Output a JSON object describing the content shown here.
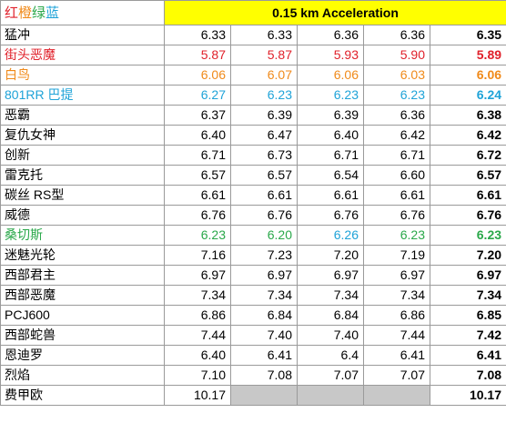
{
  "header": {
    "legend": [
      {
        "text": "红",
        "color": "#e0202a"
      },
      {
        "text": "橙",
        "color": "#f08a1a"
      },
      {
        "text": "绿",
        "color": "#2aa84a"
      },
      {
        "text": "蓝",
        "color": "#1fa3d8"
      }
    ],
    "title": "0.15 km Acceleration",
    "title_bg": "#ffff00"
  },
  "rows": [
    {
      "name": "猛冲",
      "color": "#000000",
      "runs": [
        "6.33",
        "6.33",
        "6.36",
        "6.36"
      ],
      "best": "6.35"
    },
    {
      "name": "街头恶魔",
      "color": "#e0202a",
      "runs": [
        "5.87",
        "5.87",
        "5.93",
        "5.90"
      ],
      "best": "5.89"
    },
    {
      "name": "白鸟",
      "color": "#f08a1a",
      "runs": [
        "6.06",
        "6.07",
        "6.06",
        "6.03"
      ],
      "best": "6.06"
    },
    {
      "name": "801RR 巴提",
      "color": "#1fa3d8",
      "runs": [
        "6.27",
        "6.23",
        "6.23",
        "6.23"
      ],
      "best": "6.24"
    },
    {
      "name": "恶霸",
      "color": "#000000",
      "runs": [
        "6.37",
        "6.39",
        "6.39",
        "6.36"
      ],
      "best": "6.38"
    },
    {
      "name": "复仇女神",
      "color": "#000000",
      "runs": [
        "6.40",
        "6.47",
        "6.40",
        "6.42"
      ],
      "best": "6.42"
    },
    {
      "name": "创新",
      "color": "#000000",
      "runs": [
        "6.71",
        "6.73",
        "6.71",
        "6.71"
      ],
      "best": "6.72"
    },
    {
      "name": "雷克托",
      "color": "#000000",
      "runs": [
        "6.57",
        "6.57",
        "6.54",
        "6.60"
      ],
      "best": "6.57"
    },
    {
      "name": "碳丝 RS型",
      "color": "#000000",
      "runs": [
        "6.61",
        "6.61",
        "6.61",
        "6.61"
      ],
      "best": "6.61"
    },
    {
      "name": "威德",
      "color": "#000000",
      "runs": [
        "6.76",
        "6.76",
        "6.76",
        "6.76"
      ],
      "best": "6.76"
    },
    {
      "name": "桑切斯",
      "color": "#2aa84a",
      "runs": [
        "6.23",
        "6.20",
        "6.26",
        "6.23"
      ],
      "best": "6.23",
      "run_colors": [
        "#2aa84a",
        "#2aa84a",
        "#1fa3d8",
        "#2aa84a"
      ]
    },
    {
      "name": "迷魅光轮",
      "color": "#000000",
      "runs": [
        "7.16",
        "7.23",
        "7.20",
        "7.19"
      ],
      "best": "7.20"
    },
    {
      "name": "西部君主",
      "color": "#000000",
      "runs": [
        "6.97",
        "6.97",
        "6.97",
        "6.97"
      ],
      "best": "6.97"
    },
    {
      "name": "西部恶魔",
      "color": "#000000",
      "runs": [
        "7.34",
        "7.34",
        "7.34",
        "7.34"
      ],
      "best": "7.34"
    },
    {
      "name": "PCJ600",
      "color": "#000000",
      "runs": [
        "6.86",
        "6.84",
        "6.84",
        "6.86"
      ],
      "best": "6.85"
    },
    {
      "name": "西部蛇兽",
      "color": "#000000",
      "runs": [
        "7.44",
        "7.40",
        "7.40",
        "7.44"
      ],
      "best": "7.42"
    },
    {
      "name": "恩迪罗",
      "color": "#000000",
      "runs": [
        "6.40",
        "6.41",
        "6.4",
        "6.41"
      ],
      "best": "6.41"
    },
    {
      "name": "烈焰",
      "color": "#000000",
      "runs": [
        "7.10",
        "7.08",
        "7.07",
        "7.07"
      ],
      "best": "7.08"
    },
    {
      "name": "费甲欧",
      "color": "#000000",
      "runs": [
        "10.17",
        "",
        "",
        ""
      ],
      "best": "10.17",
      "empty_runs": [
        false,
        true,
        true,
        true
      ]
    }
  ]
}
